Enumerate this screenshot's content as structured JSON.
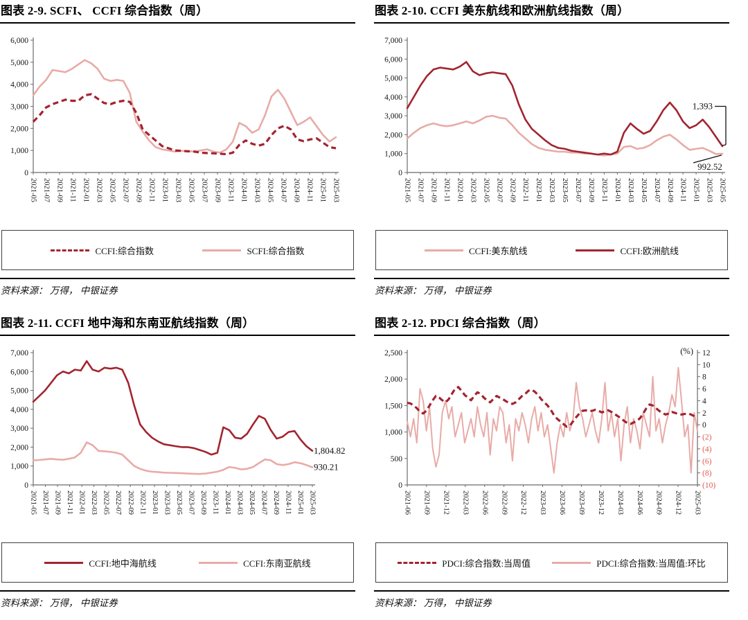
{
  "source_text": "资料来源： 万得， 中银证券",
  "colors": {
    "dark_red": "#a2242f",
    "pink": "#e8aba7",
    "negative_tick": "#e2574c",
    "axis": "#6b6b6b",
    "tick_text": "#141414"
  },
  "chart_data": [
    {
      "id": "scfi-ccfi-composite",
      "type": "line",
      "title": "图表 2-9. SCFI、 CCFI 综合指数（周）",
      "ylim": [
        0,
        6000
      ],
      "yticks": [
        0,
        1000,
        2000,
        3000,
        4000,
        5000,
        6000
      ],
      "xticklabels": [
        "2021-05",
        "2021-07",
        "2021-09",
        "2021-11",
        "2022-01",
        "2022-03",
        "2022-05",
        "2022-07",
        "2022-09",
        "2022-11",
        "2023-01",
        "2023-03",
        "2023-05",
        "2023-07",
        "2023-09",
        "2023-11",
        "2024-01",
        "2024-03",
        "2024-05",
        "2024-07",
        "2024-09",
        "2024-11",
        "2025-01",
        "2025-03"
      ],
      "legend": [
        {
          "label": "CCFI:综合指数",
          "style": "dashed",
          "color": "dark_red"
        },
        {
          "label": "SCFI:综合指数",
          "style": "solid",
          "color": "pink"
        }
      ],
      "series": [
        {
          "name": "SCFI:综合指数",
          "style": "solid",
          "color": "pink",
          "axis": "left",
          "values": [
            3500,
            3900,
            4200,
            4650,
            4600,
            4550,
            4700,
            4900,
            5100,
            4950,
            4700,
            4250,
            4150,
            4200,
            4150,
            3600,
            2300,
            1850,
            1450,
            1150,
            1050,
            1000,
            950,
            980,
            970,
            950,
            1000,
            1050,
            950,
            900,
            1050,
            1400,
            2250,
            2100,
            1800,
            1950,
            2600,
            3450,
            3750,
            3350,
            2750,
            2150,
            2300,
            2500,
            2100,
            1700,
            1400,
            1600
          ]
        },
        {
          "name": "CCFI:综合指数",
          "style": "dashed",
          "color": "dark_red",
          "axis": "left",
          "values": [
            2300,
            2600,
            2950,
            3100,
            3200,
            3300,
            3250,
            3250,
            3500,
            3550,
            3350,
            3150,
            3100,
            3200,
            3250,
            3200,
            2700,
            1950,
            1700,
            1450,
            1200,
            1100,
            1000,
            980,
            960,
            950,
            900,
            880,
            870,
            850,
            830,
            900,
            1250,
            1450,
            1300,
            1220,
            1300,
            1700,
            2000,
            2120,
            1950,
            1500,
            1420,
            1500,
            1550,
            1350,
            1150,
            1100
          ]
        }
      ],
      "annotations": []
    },
    {
      "id": "ccfi-us-east-europe",
      "type": "line",
      "title": "图表 2-10. CCFI 美东航线和欧洲航线指数（周）",
      "ylim": [
        0,
        7000
      ],
      "yticks": [
        0,
        1000,
        2000,
        3000,
        4000,
        5000,
        6000,
        7000
      ],
      "xticklabels": [
        "2021-05",
        "2021-07",
        "2021-09",
        "2021-11",
        "2022-01",
        "2022-03",
        "2022-05",
        "2022-07",
        "2022-09",
        "2022-11",
        "2023-01",
        "2023-03",
        "2023-05",
        "2023-07",
        "2023-09",
        "2023-11",
        "2024-01",
        "2024-03",
        "2024-05",
        "2024-07",
        "2024-09",
        "2024-11",
        "2025-01",
        "2025-03",
        "2025-05"
      ],
      "legend": [
        {
          "label": "CCFI:美东航线",
          "style": "solid",
          "color": "pink"
        },
        {
          "label": "CCFI:欧洲航线",
          "style": "solid",
          "color": "dark_red"
        }
      ],
      "series": [
        {
          "name": "CCFI:美东航线",
          "style": "solid",
          "color": "pink",
          "axis": "left",
          "values": [
            1800,
            2100,
            2350,
            2500,
            2600,
            2500,
            2450,
            2500,
            2600,
            2700,
            2600,
            2750,
            2950,
            3000,
            2900,
            2850,
            2500,
            2100,
            1800,
            1500,
            1300,
            1200,
            1150,
            1100,
            1100,
            1050,
            1050,
            1000,
            1000,
            950,
            900,
            950,
            1000,
            1350,
            1400,
            1250,
            1300,
            1450,
            1700,
            1900,
            2000,
            1750,
            1450,
            1200,
            1250,
            1300,
            1150,
            980,
            992.52
          ]
        },
        {
          "name": "CCFI:欧洲航线",
          "style": "solid",
          "color": "dark_red",
          "axis": "left",
          "values": [
            3400,
            4000,
            4600,
            5100,
            5450,
            5550,
            5500,
            5450,
            5600,
            5850,
            5350,
            5150,
            5250,
            5300,
            5250,
            5200,
            4600,
            3600,
            2800,
            2300,
            2000,
            1700,
            1450,
            1300,
            1250,
            1150,
            1100,
            1050,
            1000,
            950,
            1000,
            950,
            1100,
            2100,
            2600,
            2300,
            2050,
            2200,
            2700,
            3300,
            3700,
            3300,
            2700,
            2350,
            2500,
            2800,
            2400,
            1900,
            1393
          ]
        }
      ],
      "annotations": [
        {
          "text": "1,393",
          "series_index": 1,
          "type": "bracket"
        },
        {
          "text": "992.52",
          "series_index": 0,
          "type": "diagonal"
        }
      ]
    },
    {
      "id": "ccfi-mediterranean-southeast-asia",
      "type": "line",
      "title": "图表 2-11. CCFI 地中海和东南亚航线指数（周）",
      "ylim": [
        0,
        7000
      ],
      "yticks": [
        0,
        1000,
        2000,
        3000,
        4000,
        5000,
        6000,
        7000
      ],
      "xticklabels": [
        "2021-05",
        "2021-07",
        "2021-09",
        "2021-11",
        "2022-01",
        "2022-03",
        "2022-05",
        "2022-07",
        "2022-09",
        "2022-11",
        "2023-01",
        "2023-03",
        "2023-05",
        "2023-07",
        "2023-09",
        "2023-11",
        "2024-01",
        "2024-03",
        "2024-05",
        "2024-07",
        "2024-09",
        "2024-11",
        "2025-01",
        "2025-03"
      ],
      "legend": [
        {
          "label": "CCFI:地中海航线",
          "style": "solid",
          "color": "dark_red"
        },
        {
          "label": "CCFI:东南亚航线",
          "style": "solid",
          "color": "pink"
        }
      ],
      "series": [
        {
          "name": "CCFI:东南亚航线",
          "style": "solid",
          "color": "pink",
          "axis": "left",
          "values": [
            1300,
            1320,
            1350,
            1380,
            1350,
            1330,
            1380,
            1450,
            1700,
            2250,
            2100,
            1800,
            1780,
            1750,
            1700,
            1600,
            1300,
            1000,
            850,
            750,
            700,
            680,
            650,
            640,
            630,
            620,
            600,
            590,
            580,
            600,
            650,
            700,
            800,
            950,
            900,
            820,
            850,
            950,
            1150,
            1350,
            1300,
            1100,
            1050,
            1100,
            1200,
            1150,
            1050,
            930.21
          ]
        },
        {
          "name": "CCFI:地中海航线",
          "style": "solid",
          "color": "dark_red",
          "axis": "left",
          "values": [
            4400,
            4700,
            5000,
            5400,
            5800,
            6000,
            5900,
            6100,
            6050,
            6550,
            6100,
            6000,
            6200,
            6150,
            6200,
            6100,
            5400,
            4200,
            3200,
            2800,
            2500,
            2300,
            2150,
            2100,
            2050,
            2000,
            2000,
            1950,
            1850,
            1750,
            1600,
            1700,
            3050,
            2900,
            2500,
            2450,
            2700,
            3200,
            3650,
            3500,
            2900,
            2450,
            2550,
            2800,
            2850,
            2400,
            2050,
            1804.82
          ]
        }
      ],
      "annotations": [
        {
          "text": "1,804.82",
          "series_index": 1,
          "type": "end"
        },
        {
          "text": "930.21",
          "series_index": 0,
          "type": "end"
        }
      ]
    },
    {
      "id": "pdci-composite",
      "type": "line",
      "title": "图表 2-12. PDCI 综合指数（周）",
      "ylim": [
        0,
        2500
      ],
      "yticks": [
        0,
        500,
        1000,
        1500,
        2000,
        2500
      ],
      "right_axis": {
        "label": "(%)",
        "ylim": [
          -10,
          12
        ],
        "ticks": [
          12,
          10,
          8,
          6,
          4,
          2,
          0,
          -2,
          -4,
          -6,
          -8,
          -10
        ]
      },
      "xticklabels": [
        "2021-06",
        "2021-09",
        "2021-12",
        "2022-03",
        "2022-06",
        "2022-09",
        "2022-12",
        "2023-03",
        "2023-06",
        "2023-09",
        "2023-12",
        "2024-03",
        "2024-06",
        "2024-09",
        "2024-12",
        "2025-03"
      ],
      "legend": [
        {
          "label": "PDCI:综合指数:当周值",
          "style": "dashed",
          "color": "dark_red"
        },
        {
          "label": "PDCI:综合指数:当周值:环比",
          "style": "solid",
          "color": "pink"
        }
      ],
      "series": [
        {
          "name": "PDCI:综合指数:当周值:环比",
          "style": "solid",
          "color": "pink",
          "axis": "right",
          "values": [
            0.5,
            -2,
            1,
            -3,
            6,
            4,
            -1,
            3,
            -4,
            -7,
            -5,
            2,
            4,
            1,
            3,
            -2,
            0,
            2,
            -3,
            -1,
            1,
            -2,
            3,
            0,
            -2,
            2,
            -5,
            1,
            -1,
            3,
            2,
            -3,
            0,
            -6,
            1,
            -1,
            2,
            0,
            -3,
            1,
            3,
            -1,
            2,
            -2,
            0,
            -4,
            -8,
            -3,
            0,
            -2,
            2,
            -1,
            1,
            7,
            3,
            1,
            -2,
            0,
            2,
            -1,
            -3,
            1,
            7,
            -1,
            2,
            -2,
            1,
            -6,
            0,
            3,
            -3,
            1,
            -1,
            -4,
            2,
            0,
            -2,
            8,
            -1,
            1,
            -3,
            0,
            2,
            5,
            3,
            9.5,
            4,
            -2,
            0,
            -8,
            2,
            -1
          ]
        },
        {
          "name": "PDCI:综合指数:当周值",
          "style": "dashed",
          "color": "dark_red",
          "axis": "left",
          "values": [
            1550,
            1540,
            1500,
            1450,
            1380,
            1350,
            1400,
            1500,
            1600,
            1680,
            1650,
            1600,
            1560,
            1620,
            1720,
            1820,
            1850,
            1780,
            1700,
            1650,
            1600,
            1680,
            1750,
            1720,
            1650,
            1600,
            1560,
            1620,
            1680,
            1650,
            1620,
            1580,
            1550,
            1530,
            1560,
            1620,
            1680,
            1720,
            1780,
            1800,
            1760,
            1700,
            1620,
            1560,
            1500,
            1420,
            1320,
            1250,
            1200,
            1150,
            1100,
            1120,
            1200,
            1280,
            1350,
            1400,
            1410,
            1390,
            1400,
            1420,
            1400,
            1370,
            1390,
            1410,
            1380,
            1340,
            1300,
            1260,
            1210,
            1170,
            1150,
            1180,
            1210,
            1260,
            1350,
            1450,
            1520,
            1500,
            1450,
            1400,
            1360,
            1330,
            1350,
            1380,
            1360,
            1340,
            1330,
            1340,
            1350,
            1330,
            1300,
            1280
          ]
        }
      ],
      "annotations": []
    }
  ]
}
